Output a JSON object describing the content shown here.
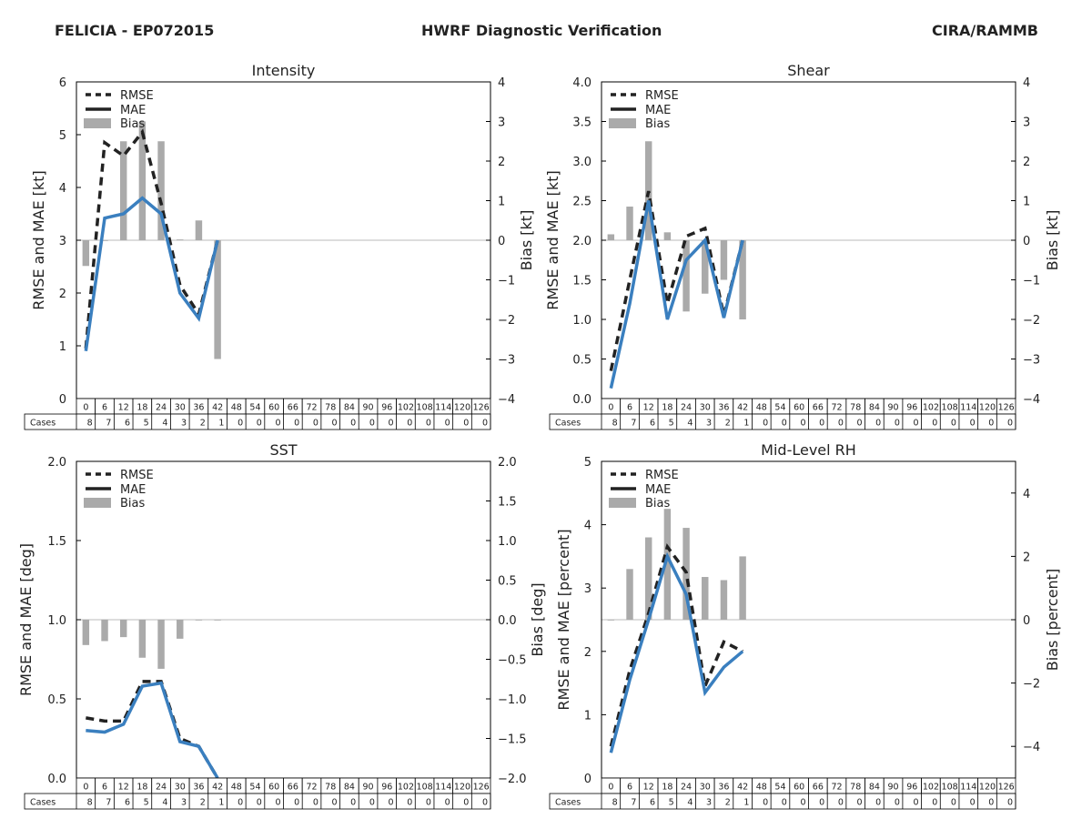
{
  "header": {
    "storm": "FELICIA - EP072015",
    "title": "HWRF Diagnostic Verification",
    "source": "CIRA/RAMMB"
  },
  "colors": {
    "rmse": "#222222",
    "mae": "#3a7fbf",
    "bias": "#aaaaaa",
    "axis": "#000000",
    "zeroline": "#bbbbbb"
  },
  "legend": {
    "rmse": "RMSE",
    "mae": "MAE",
    "bias": "Bias"
  },
  "table": {
    "cases_label": "Cases",
    "hours": [
      0,
      6,
      12,
      18,
      24,
      30,
      36,
      42,
      48,
      54,
      60,
      66,
      72,
      78,
      84,
      90,
      96,
      102,
      108,
      114,
      120,
      126
    ],
    "cases": [
      8,
      7,
      6,
      5,
      4,
      3,
      2,
      1,
      0,
      0,
      0,
      0,
      0,
      0,
      0,
      0,
      0,
      0,
      0,
      0,
      0,
      0
    ]
  },
  "chart_data": [
    {
      "type": "line",
      "title": "Intensity",
      "ylabel": "RMSE and MAE [kt]",
      "ylabel2": "Bias [kt]",
      "ylim": [
        0,
        6
      ],
      "yticks": [
        0,
        1,
        2,
        3,
        4,
        5,
        6
      ],
      "ytick_labels": [
        "0",
        "1",
        "2",
        "3",
        "4",
        "5",
        "6"
      ],
      "y2lim": [
        -4,
        4
      ],
      "y2ticks": [
        -4,
        -3,
        -2,
        -1,
        0,
        1,
        2,
        3,
        4
      ],
      "y2tick_labels": [
        "−4",
        "−3",
        "−2",
        "−1",
        "0",
        "1",
        "2",
        "3",
        "4"
      ],
      "x": [
        0,
        6,
        12,
        18,
        24,
        30,
        36,
        42
      ],
      "series": [
        {
          "name": "RMSE",
          "values": [
            0.95,
            4.85,
            4.6,
            5.05,
            3.7,
            2.15,
            1.6,
            3.0
          ]
        },
        {
          "name": "MAE",
          "values": [
            0.9,
            3.42,
            3.5,
            3.8,
            3.5,
            2.0,
            1.52,
            3.0
          ]
        },
        {
          "name": "Bias",
          "values": [
            -0.65,
            0,
            2.5,
            3.0,
            2.5,
            0.02,
            0.5,
            -3.0
          ]
        }
      ]
    },
    {
      "type": "line",
      "title": "Shear",
      "ylabel": "RMSE and MAE [kt]",
      "ylabel2": "Bias [kt]",
      "ylim": [
        0,
        4
      ],
      "yticks": [
        0,
        0.5,
        1,
        1.5,
        2,
        2.5,
        3,
        3.5,
        4
      ],
      "ytick_labels": [
        "0.0",
        "0.5",
        "1.0",
        "1.5",
        "2.0",
        "2.5",
        "3.0",
        "3.5",
        "4.0"
      ],
      "y2lim": [
        -4,
        4
      ],
      "y2ticks": [
        -4,
        -3,
        -2,
        -1,
        0,
        1,
        2,
        3,
        4
      ],
      "y2tick_labels": [
        "−4",
        "−3",
        "−2",
        "−1",
        "0",
        "1",
        "2",
        "3",
        "4"
      ],
      "x": [
        0,
        6,
        12,
        18,
        24,
        30,
        36,
        42
      ],
      "series": [
        {
          "name": "RMSE",
          "values": [
            0.35,
            1.5,
            2.62,
            1.2,
            2.05,
            2.15,
            1.05,
            2.0
          ]
        },
        {
          "name": "MAE",
          "values": [
            0.13,
            1.2,
            2.5,
            1.0,
            1.75,
            2.0,
            1.02,
            2.0
          ]
        },
        {
          "name": "Bias",
          "values": [
            0.15,
            0.85,
            2.5,
            0.2,
            -1.8,
            -1.35,
            -1.0,
            -2.0
          ]
        }
      ]
    },
    {
      "type": "line",
      "title": "SST",
      "ylabel": "RMSE and MAE [deg]",
      "ylabel2": "Bias [deg]",
      "ylim": [
        0,
        2
      ],
      "yticks": [
        0,
        0.5,
        1,
        1.5,
        2
      ],
      "ytick_labels": [
        "0.0",
        "0.5",
        "1.0",
        "1.5",
        "2.0"
      ],
      "y2lim": [
        -2,
        2
      ],
      "y2ticks": [
        -2,
        -1.5,
        -1,
        -0.5,
        0,
        0.5,
        1,
        1.5,
        2
      ],
      "y2tick_labels": [
        "−2.0",
        "−1.5",
        "−1.0",
        "−0.5",
        "0.0",
        "0.5",
        "1.0",
        "1.5",
        "2.0"
      ],
      "x": [
        0,
        6,
        12,
        18,
        24,
        30,
        36,
        42
      ],
      "series": [
        {
          "name": "RMSE",
          "values": [
            0.38,
            0.36,
            0.36,
            0.61,
            0.61,
            0.25,
            0.2,
            0.0
          ]
        },
        {
          "name": "MAE",
          "values": [
            0.3,
            0.29,
            0.34,
            0.58,
            0.6,
            0.23,
            0.2,
            0.0
          ]
        },
        {
          "name": "Bias",
          "values": [
            -0.32,
            -0.27,
            -0.22,
            -0.48,
            -0.62,
            -0.24,
            0.0,
            0.0
          ]
        }
      ]
    },
    {
      "type": "line",
      "title": "Mid-Level RH",
      "ylabel": "RMSE and MAE [percent]",
      "ylabel2": "Bias [percent]",
      "ylim": [
        0,
        5
      ],
      "yticks": [
        0,
        1,
        2,
        3,
        4,
        5
      ],
      "ytick_labels": [
        "0",
        "1",
        "2",
        "3",
        "4",
        "5"
      ],
      "y2lim": [
        -5,
        5
      ],
      "y2ticks": [
        -4,
        -2,
        0,
        2,
        4
      ],
      "y2tick_labels": [
        "−4",
        "−2",
        "0",
        "2",
        "4"
      ],
      "x": [
        0,
        6,
        12,
        18,
        24,
        30,
        36,
        42
      ],
      "series": [
        {
          "name": "RMSE",
          "values": [
            0.5,
            1.7,
            2.6,
            3.65,
            3.25,
            1.45,
            2.15,
            2.0
          ]
        },
        {
          "name": "MAE",
          "values": [
            0.4,
            1.55,
            2.5,
            3.5,
            2.9,
            1.35,
            1.75,
            2.0
          ]
        },
        {
          "name": "Bias",
          "values": [
            0.0,
            1.6,
            2.6,
            3.5,
            2.9,
            1.35,
            1.25,
            2.0
          ]
        }
      ]
    }
  ]
}
